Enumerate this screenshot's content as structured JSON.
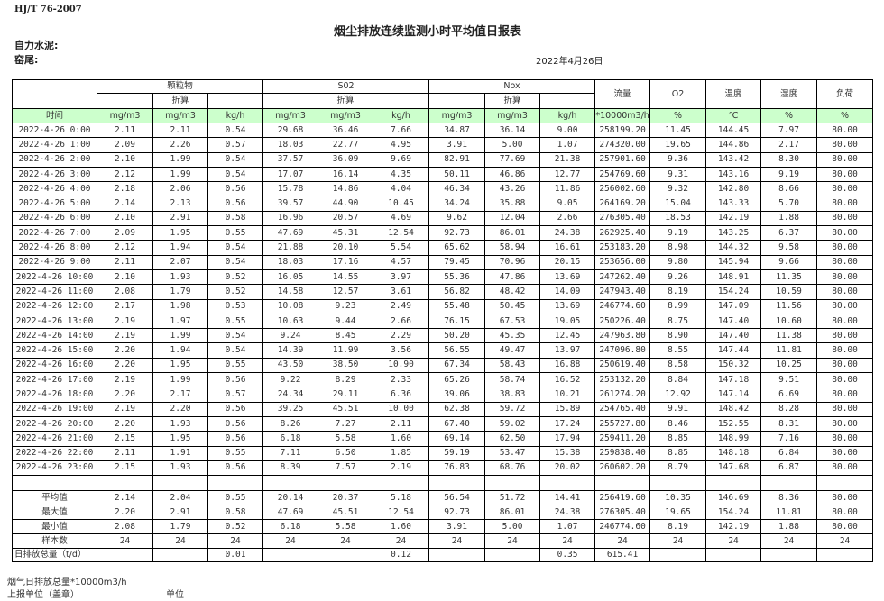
{
  "header": {
    "standard": "HJ/T  76-2007",
    "title": "烟尘排放连续监测小时平均值日报表",
    "company": "自力水泥:",
    "kiln": "窑尾:",
    "date": "2022年4月26日"
  },
  "table": {
    "groups": {
      "particulate": "颗粒物",
      "so2": "S02",
      "nox": "Nox",
      "converted": "折算"
    },
    "single_headers": {
      "flow": "流量",
      "o2": "O2",
      "temperature": "温度",
      "humidity": "湿度",
      "load": "负荷"
    },
    "units": [
      "时间",
      "mg/m3",
      "mg/m3",
      "kg/h",
      "mg/m3",
      "mg/m3",
      "kg/h",
      "mg/m3",
      "mg/m3",
      "kg/h",
      "*10000m3/h",
      "%",
      "℃",
      "%",
      "%"
    ],
    "rows": [
      [
        "2022-4-26 0:00",
        "2.11",
        "2.11",
        "0.54",
        "29.68",
        "36.46",
        "7.66",
        "34.87",
        "36.14",
        "9.00",
        "258199.20",
        "11.45",
        "144.45",
        "7.97",
        "80.00"
      ],
      [
        "2022-4-26 1:00",
        "2.09",
        "2.26",
        "0.57",
        "18.03",
        "22.77",
        "4.95",
        "3.91",
        "5.00",
        "1.07",
        "274320.00",
        "19.65",
        "144.86",
        "2.17",
        "80.00"
      ],
      [
        "2022-4-26 2:00",
        "2.10",
        "1.99",
        "0.54",
        "37.57",
        "36.09",
        "9.69",
        "82.91",
        "77.69",
        "21.38",
        "257901.60",
        "9.36",
        "143.42",
        "8.30",
        "80.00"
      ],
      [
        "2022-4-26 3:00",
        "2.12",
        "1.99",
        "0.54",
        "17.07",
        "16.14",
        "4.35",
        "50.11",
        "46.86",
        "12.77",
        "254769.60",
        "9.31",
        "143.16",
        "9.19",
        "80.00"
      ],
      [
        "2022-4-26 4:00",
        "2.18",
        "2.06",
        "0.56",
        "15.78",
        "14.86",
        "4.04",
        "46.34",
        "43.26",
        "11.86",
        "256002.60",
        "9.32",
        "142.80",
        "8.66",
        "80.00"
      ],
      [
        "2022-4-26 5:00",
        "2.14",
        "2.13",
        "0.56",
        "39.57",
        "44.90",
        "10.45",
        "34.24",
        "35.88",
        "9.05",
        "264169.20",
        "15.04",
        "143.33",
        "5.70",
        "80.00"
      ],
      [
        "2022-4-26 6:00",
        "2.10",
        "2.91",
        "0.58",
        "16.96",
        "20.57",
        "4.69",
        "9.62",
        "12.04",
        "2.66",
        "276305.40",
        "18.53",
        "142.19",
        "1.88",
        "80.00"
      ],
      [
        "2022-4-26 7:00",
        "2.09",
        "1.95",
        "0.55",
        "47.69",
        "45.31",
        "12.54",
        "92.73",
        "86.01",
        "24.38",
        "262925.40",
        "9.19",
        "143.25",
        "6.37",
        "80.00"
      ],
      [
        "2022-4-26 8:00",
        "2.12",
        "1.94",
        "0.54",
        "21.88",
        "20.10",
        "5.54",
        "65.62",
        "58.94",
        "16.61",
        "253183.20",
        "8.98",
        "144.32",
        "9.58",
        "80.00"
      ],
      [
        "2022-4-26 9:00",
        "2.11",
        "2.07",
        "0.54",
        "18.03",
        "17.16",
        "4.57",
        "79.45",
        "70.96",
        "20.15",
        "253656.00",
        "9.80",
        "145.94",
        "9.66",
        "80.00"
      ],
      [
        "2022-4-26 10:00",
        "2.10",
        "1.93",
        "0.52",
        "16.05",
        "14.55",
        "3.97",
        "55.36",
        "47.86",
        "13.69",
        "247262.40",
        "9.26",
        "148.91",
        "11.35",
        "80.00"
      ],
      [
        "2022-4-26 11:00",
        "2.08",
        "1.79",
        "0.52",
        "14.58",
        "12.57",
        "3.61",
        "56.82",
        "48.42",
        "14.09",
        "247943.40",
        "8.19",
        "154.24",
        "10.59",
        "80.00"
      ],
      [
        "2022-4-26 12:00",
        "2.17",
        "1.98",
        "0.53",
        "10.08",
        "9.23",
        "2.49",
        "55.48",
        "50.45",
        "13.69",
        "246774.60",
        "8.99",
        "147.09",
        "11.56",
        "80.00"
      ],
      [
        "2022-4-26 13:00",
        "2.19",
        "1.97",
        "0.55",
        "10.63",
        "9.44",
        "2.66",
        "76.15",
        "67.53",
        "19.05",
        "250226.40",
        "8.75",
        "147.40",
        "10.60",
        "80.00"
      ],
      [
        "2022-4-26 14:00",
        "2.19",
        "1.99",
        "0.54",
        "9.24",
        "8.45",
        "2.29",
        "50.20",
        "45.35",
        "12.45",
        "247963.80",
        "8.90",
        "147.40",
        "11.38",
        "80.00"
      ],
      [
        "2022-4-26 15:00",
        "2.20",
        "1.94",
        "0.54",
        "14.39",
        "11.99",
        "3.56",
        "56.55",
        "49.47",
        "13.97",
        "247096.80",
        "8.55",
        "147.44",
        "11.81",
        "80.00"
      ],
      [
        "2022-4-26 16:00",
        "2.20",
        "1.95",
        "0.55",
        "43.50",
        "38.50",
        "10.90",
        "67.34",
        "58.43",
        "16.88",
        "250619.40",
        "8.58",
        "150.32",
        "10.25",
        "80.00"
      ],
      [
        "2022-4-26 17:00",
        "2.19",
        "1.99",
        "0.56",
        "9.22",
        "8.29",
        "2.33",
        "65.26",
        "58.74",
        "16.52",
        "253132.20",
        "8.84",
        "147.18",
        "9.51",
        "80.00"
      ],
      [
        "2022-4-26 18:00",
        "2.20",
        "2.17",
        "0.57",
        "24.34",
        "29.11",
        "6.36",
        "39.06",
        "38.83",
        "10.21",
        "261274.20",
        "12.92",
        "147.14",
        "6.69",
        "80.00"
      ],
      [
        "2022-4-26 19:00",
        "2.19",
        "2.20",
        "0.56",
        "39.25",
        "45.51",
        "10.00",
        "62.38",
        "59.72",
        "15.89",
        "254765.40",
        "9.91",
        "148.42",
        "8.28",
        "80.00"
      ],
      [
        "2022-4-26 20:00",
        "2.20",
        "1.93",
        "0.56",
        "8.26",
        "7.27",
        "2.11",
        "67.40",
        "59.02",
        "17.24",
        "255727.80",
        "8.46",
        "152.55",
        "8.31",
        "80.00"
      ],
      [
        "2022-4-26 21:00",
        "2.15",
        "1.95",
        "0.56",
        "6.18",
        "5.58",
        "1.60",
        "69.14",
        "62.50",
        "17.94",
        "259411.20",
        "8.85",
        "148.99",
        "7.16",
        "80.00"
      ],
      [
        "2022-4-26 22:00",
        "2.11",
        "1.91",
        "0.55",
        "7.11",
        "6.50",
        "1.85",
        "59.19",
        "53.47",
        "15.38",
        "259838.40",
        "8.85",
        "148.18",
        "6.84",
        "80.00"
      ],
      [
        "2022-4-26 23:00",
        "2.15",
        "1.93",
        "0.56",
        "8.39",
        "7.57",
        "2.19",
        "76.83",
        "68.76",
        "20.02",
        "260602.20",
        "8.79",
        "147.68",
        "6.87",
        "80.00"
      ]
    ],
    "summary": [
      [
        "平均值",
        "2.14",
        "2.04",
        "0.55",
        "20.14",
        "20.37",
        "5.18",
        "56.54",
        "51.72",
        "14.41",
        "256419.60",
        "10.35",
        "146.69",
        "8.36",
        "80.00"
      ],
      [
        "最大值",
        "2.20",
        "2.91",
        "0.58",
        "47.69",
        "45.51",
        "12.54",
        "92.73",
        "86.01",
        "24.38",
        "276305.40",
        "19.65",
        "154.24",
        "11.81",
        "80.00"
      ],
      [
        "最小值",
        "2.08",
        "1.79",
        "0.52",
        "6.18",
        "5.58",
        "1.60",
        "3.91",
        "5.00",
        "1.07",
        "246774.60",
        "8.19",
        "142.19",
        "1.88",
        "80.00"
      ],
      [
        "样本数",
        "24",
        "24",
        "24",
        "24",
        "24",
        "24",
        "24",
        "24",
        "24",
        "24",
        "24",
        "24",
        "24",
        "24"
      ]
    ],
    "total": {
      "label": "日排放总量（t/d）",
      "particulate_kgh": "0.01",
      "so2_kgh": "0.12",
      "nox_kgh": "0.35",
      "flow": "615.41"
    }
  },
  "footer": {
    "flue_gas_total": "烟气日排放总量*10000m3/h",
    "reporting_unit": "上报单位（盖章）",
    "unit": "单位"
  },
  "colors": {
    "units_row_bg": "#ccffcc"
  }
}
